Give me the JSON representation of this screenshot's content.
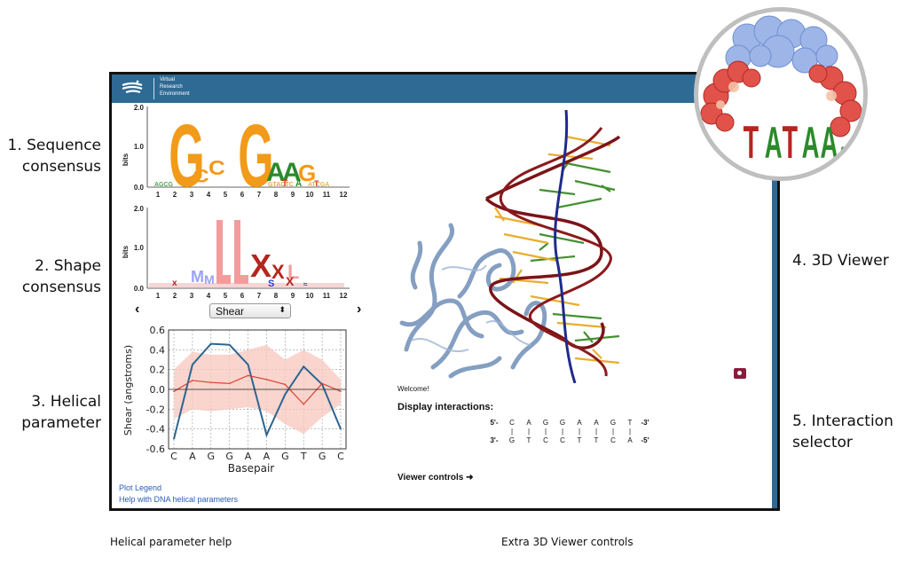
{
  "annotations": {
    "sequence_consensus": [
      "1. Sequence",
      "consensus"
    ],
    "shape_consensus": [
      "2. Shape",
      "consensus"
    ],
    "helical_parameter": [
      "3. Helical",
      "parameter"
    ],
    "viewer_3d": "4. 3D Viewer",
    "interaction_selector": [
      "5. Interaction",
      "selector"
    ],
    "helical_help_caption": "Helical parameter help",
    "viewer_controls_caption": "Extra 3D Viewer controls"
  },
  "app": {
    "brand_lines": [
      "Virtual",
      "Research",
      "Environment"
    ],
    "accent_color": "#2e6a93",
    "prev_arrow": "‹",
    "next_arrow": "›",
    "parameter_select": {
      "value": "Shear",
      "arrow": "⬍"
    },
    "links": {
      "plot_legend": "Plot Legend",
      "help_helical": "Help with DNA helical parameters"
    },
    "welcome": "Welcome!",
    "display_interactions": "Display interactions:",
    "viewer_controls": "Viewer controls ➜",
    "camera_icon": "camera-icon",
    "sequence": {
      "top_prefix": "5'-",
      "top_suffix": "-3'",
      "top": [
        "C",
        "A",
        "G",
        "G",
        "A",
        "A",
        "G",
        "T"
      ],
      "pipe": "|",
      "bottom_prefix": "3'-",
      "bottom_suffix": "-5'",
      "bottom": [
        "G",
        "T",
        "C",
        "C",
        "T",
        "T",
        "C",
        "A"
      ]
    }
  },
  "logos": {
    "sequence": {
      "ylabel": "bits",
      "yticks": [
        "0.0",
        "1.0",
        "2.0"
      ],
      "xticks": [
        "1",
        "2",
        "3",
        "4",
        "5",
        "6",
        "7",
        "8",
        "9",
        "10",
        "11",
        "12"
      ],
      "letters": [
        "C",
        "C",
        "G",
        "G",
        "A",
        "A",
        "G",
        "T",
        "A",
        "T"
      ]
    },
    "shape": {
      "ylabel": "bits",
      "yticks": [
        "0.0",
        "1.0",
        "2.0"
      ],
      "xticks": [
        "1",
        "2",
        "3",
        "4",
        "5",
        "6",
        "7",
        "8",
        "9",
        "10",
        "11",
        "12"
      ],
      "letters": [
        "M",
        "M",
        "L",
        "L",
        "X",
        "X",
        "L",
        "X",
        "S"
      ]
    },
    "inset_letters": [
      "T",
      "A",
      "T",
      "A",
      "A",
      "A"
    ]
  },
  "chart_data": {
    "type": "line",
    "title": "",
    "xlabel": "Basepair",
    "ylabel": "Shear (angstroms)",
    "categories": [
      "C",
      "A",
      "G",
      "G",
      "A",
      "A",
      "G",
      "T",
      "G",
      "C"
    ],
    "ylim": [
      -0.6,
      0.6
    ],
    "yticks": [
      -0.6,
      -0.4,
      -0.2,
      0.0,
      0.2,
      0.4,
      0.6
    ],
    "grid": true,
    "series": [
      {
        "color": "#2c6591",
        "values": [
          -0.5,
          0.25,
          0.46,
          0.45,
          0.25,
          -0.46,
          -0.05,
          0.23,
          0.05,
          -0.4
        ]
      },
      {
        "color": "#d9402e",
        "values": [
          -0.02,
          0.09,
          0.07,
          0.06,
          0.14,
          0.1,
          0.05,
          -0.15,
          0.06,
          -0.02
        ]
      }
    ],
    "band": {
      "color": "#f7c7bd",
      "upper": [
        0.2,
        0.38,
        0.35,
        0.35,
        0.4,
        0.45,
        0.3,
        0.4,
        0.3,
        0.1
      ],
      "lower": [
        -0.3,
        -0.2,
        -0.22,
        -0.2,
        -0.18,
        -0.22,
        -0.35,
        -0.45,
        -0.28,
        -0.15
      ]
    }
  }
}
